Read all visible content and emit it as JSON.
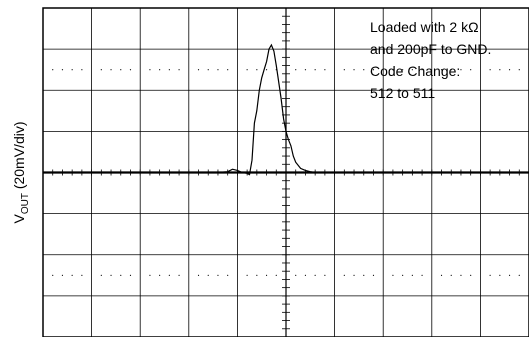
{
  "chart_data": {
    "type": "line",
    "title": "",
    "xlabel": "",
    "ylabel": "V",
    "ylabel_sub": "OUT",
    "ylabel_rest": " (20mV/div)",
    "grid": true,
    "x_divisions": 10,
    "y_divisions": 8,
    "ylim": [
      -4,
      4
    ],
    "xlim": [
      0,
      10
    ],
    "annotation_lines": [
      "Loaded with 2 kΩ",
      "and 200pF to GND.",
      "Code Change:",
      "512 to 511"
    ],
    "series": [
      {
        "values_x": [
          0,
          3.6,
          3.8,
          3.9,
          4.0,
          4.1,
          4.2,
          4.25,
          4.3,
          4.35,
          4.4,
          4.45,
          4.5,
          4.55,
          4.6,
          4.65,
          4.7,
          4.75,
          4.8,
          4.85,
          4.9,
          4.95,
          5.0,
          5.05,
          5.1,
          5.15,
          5.2,
          5.3,
          5.4,
          5.5,
          5.6,
          5.8,
          6.0,
          10
        ],
        "values_y": [
          0,
          0,
          0.02,
          0.08,
          0.05,
          0.0,
          -0.02,
          -0.05,
          0.3,
          1.2,
          1.5,
          2.0,
          2.3,
          2.5,
          2.7,
          3.0,
          3.1,
          2.95,
          2.6,
          2.2,
          1.8,
          1.3,
          1.0,
          0.8,
          0.65,
          0.4,
          0.25,
          0.1,
          0.05,
          0.02,
          0.0,
          0.0,
          0.0,
          0
        ]
      }
    ]
  }
}
